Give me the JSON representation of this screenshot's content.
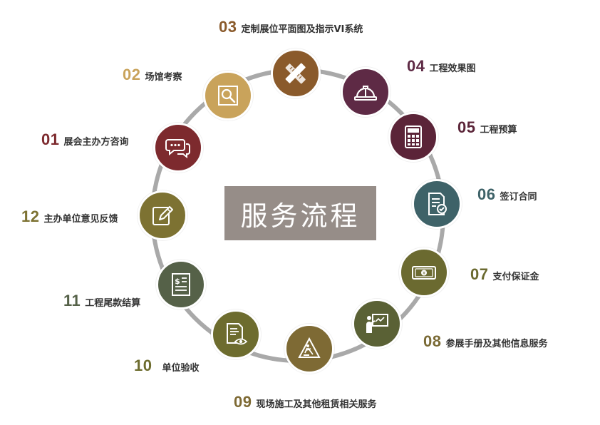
{
  "center_title": "服务流程",
  "ring_color": "#a9a9a9",
  "steps": [
    {
      "num": "01",
      "text": "展会主办方咨询",
      "color": "#7d2a2e",
      "num_color": "#7d2a2e",
      "icon": "chat-bubbles-icon"
    },
    {
      "num": "02",
      "text": "场馆考察",
      "color": "#c9a35b",
      "num_color": "#c9a35b",
      "icon": "magnifier-icon"
    },
    {
      "num": "03",
      "text": "定制展位平面图及指示VI系统",
      "color": "#8a5a2b",
      "num_color": "#8a5a2b",
      "icon": "pencil-ruler-icon"
    },
    {
      "num": "04",
      "text": "工程效果图",
      "color": "#5e2a45",
      "num_color": "#5e2a45",
      "icon": "hard-hat-icon"
    },
    {
      "num": "05",
      "text": "工程预算",
      "color": "#5b2438",
      "num_color": "#5b2438",
      "icon": "calculator-icon"
    },
    {
      "num": "06",
      "text": "签订合同",
      "color": "#3e6268",
      "num_color": "#3e6268",
      "icon": "contract-check-icon"
    },
    {
      "num": "07",
      "text": "支付保证金",
      "color": "#6b6a30",
      "num_color": "#6b6a30",
      "icon": "banknote-icon"
    },
    {
      "num": "08",
      "text": "参展手册及其他信息服务",
      "color": "#5a6135",
      "num_color": "#7a6a35",
      "icon": "presenter-board-icon"
    },
    {
      "num": "09",
      "text": "现场施工及其他租赁相关服务",
      "color": "#7e6a34",
      "num_color": "#7e6a34",
      "icon": "construction-worker-icon"
    },
    {
      "num": "10",
      "text": "单位验收",
      "color": "#6d6c2e",
      "num_color": "#6d6c2e",
      "icon": "document-eye-icon"
    },
    {
      "num": "11",
      "text": "工程尾款结算",
      "color": "#556148",
      "num_color": "#556148",
      "icon": "invoice-icon"
    },
    {
      "num": "12",
      "text": "主办单位意见反馈",
      "color": "#7d7232",
      "num_color": "#7d7232",
      "icon": "edit-note-icon"
    }
  ]
}
